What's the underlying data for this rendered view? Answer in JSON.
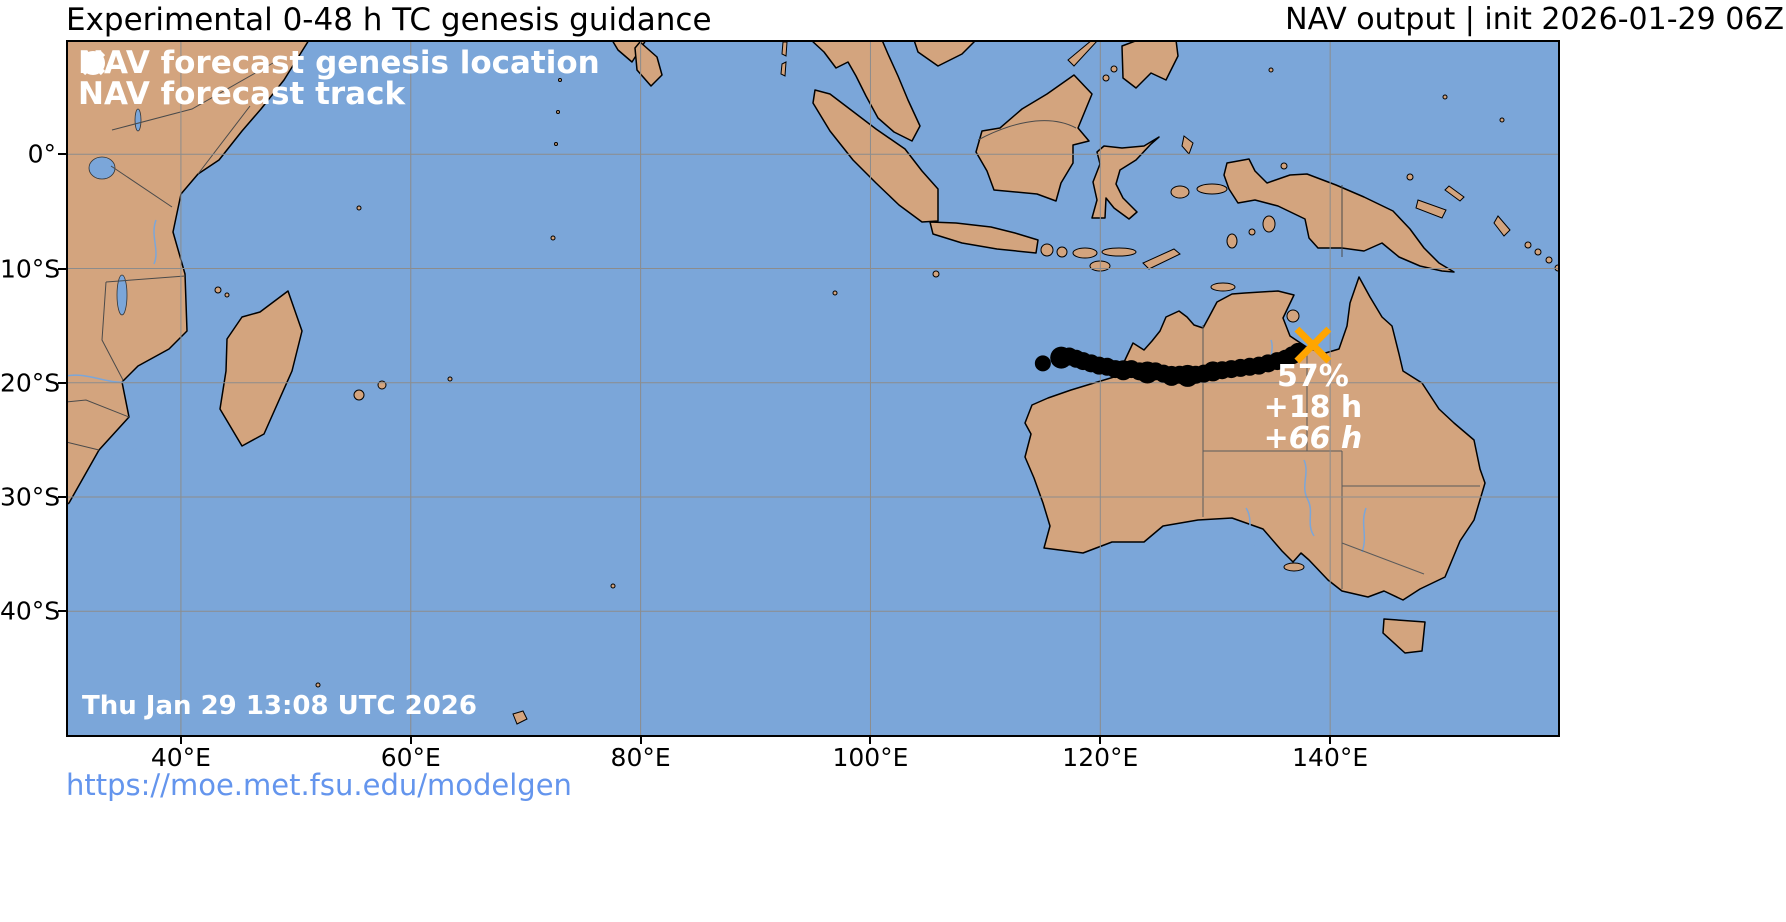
{
  "header": {
    "title": "Experimental 0-48 h TC genesis guidance",
    "model_info": "NAV output | init 2026-01-29 06Z"
  },
  "legend": {
    "genesis_label": "NAV forecast genesis location",
    "track_label": "NAV forecast track"
  },
  "map": {
    "extent": {
      "lon_min": 30,
      "lon_max": 160,
      "lat_max": 10,
      "lat_min": -51
    },
    "x_ticks": [
      {
        "lon": 40,
        "label": "40°E"
      },
      {
        "lon": 60,
        "label": "60°E"
      },
      {
        "lon": 80,
        "label": "80°E"
      },
      {
        "lon": 100,
        "label": "100°E"
      },
      {
        "lon": 120,
        "label": "120°E"
      },
      {
        "lon": 140,
        "label": "140°E"
      }
    ],
    "y_ticks": [
      {
        "lat": 0,
        "label": "0°"
      },
      {
        "lat": -10,
        "label": "10°S"
      },
      {
        "lat": -20,
        "label": "20°S"
      },
      {
        "lat": -30,
        "label": "30°S"
      },
      {
        "lat": -40,
        "label": "40°S"
      }
    ],
    "timestamp": "Thu Jan 29 13:08 UTC 2026"
  },
  "chart_data": {
    "type": "scatter",
    "title": "Experimental 0-48 h TC genesis guidance",
    "series": [
      {
        "name": "NAV forecast track",
        "points": [
          [
            115.0,
            -18.3,
            8
          ],
          [
            116.6,
            -17.8,
            11
          ],
          [
            117.3,
            -17.7,
            9
          ],
          [
            117.9,
            -17.9,
            9
          ],
          [
            118.5,
            -18.1,
            9
          ],
          [
            119.2,
            -18.3,
            9
          ],
          [
            119.9,
            -18.5,
            9
          ],
          [
            120.6,
            -18.6,
            9
          ],
          [
            121.3,
            -18.8,
            9
          ],
          [
            122.0,
            -18.9,
            10
          ],
          [
            122.7,
            -18.8,
            9
          ],
          [
            123.4,
            -19.0,
            9
          ],
          [
            124.1,
            -19.1,
            11
          ],
          [
            124.8,
            -19.0,
            9
          ],
          [
            125.5,
            -19.2,
            9
          ],
          [
            126.2,
            -19.4,
            10
          ],
          [
            126.9,
            -19.3,
            9
          ],
          [
            127.6,
            -19.4,
            11
          ],
          [
            128.3,
            -19.3,
            9
          ],
          [
            129.0,
            -19.2,
            9
          ],
          [
            129.8,
            -19.0,
            10
          ],
          [
            130.6,
            -18.9,
            9
          ],
          [
            131.4,
            -18.8,
            9
          ],
          [
            132.2,
            -18.7,
            9
          ],
          [
            133.0,
            -18.6,
            9
          ],
          [
            133.8,
            -18.5,
            9
          ],
          [
            134.6,
            -18.3,
            9
          ],
          [
            135.4,
            -18.1,
            9
          ],
          [
            136.1,
            -17.9,
            9
          ],
          [
            136.7,
            -17.6,
            9
          ],
          [
            137.2,
            -17.3,
            9
          ]
        ]
      }
    ],
    "genesis": {
      "lon": 138.5,
      "lat": -16.7
    },
    "annotations": [
      {
        "text": "57%",
        "italic": false
      },
      {
        "text": "+18 h",
        "italic": false
      },
      {
        "text": "+66 h",
        "italic": true
      }
    ]
  },
  "footer": {
    "url": "https://moe.met.fsu.edu/modelgen"
  },
  "colors": {
    "ocean": "#7BA6D9",
    "land": "#D3A47E",
    "grid": "#8C8C8C",
    "track": "#000000",
    "genesis_marker": "#FFA500",
    "link": "#6495ED",
    "annotation_text": "#FFFFFF"
  }
}
